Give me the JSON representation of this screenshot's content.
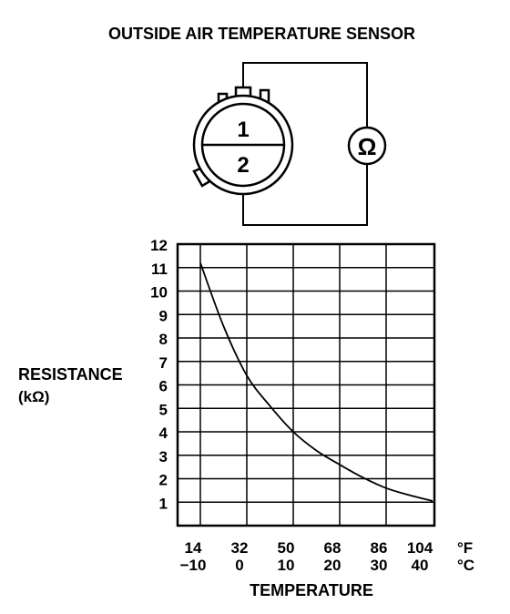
{
  "title": "OUTSIDE AIR TEMPERATURE SENSOR",
  "connector": {
    "terminal_1": "1",
    "terminal_2": "2"
  },
  "meter": {
    "symbol": "Ω"
  },
  "colors": {
    "ink": "#000000",
    "background": "#ffffff"
  },
  "chart_data": {
    "type": "line",
    "ylabel": "RESISTANCE",
    "yunit": "(kΩ)",
    "xlabel": "TEMPERATURE",
    "ylim": [
      0,
      12
    ],
    "xlim_c": [
      -10,
      40
    ],
    "y_ticks": [
      "1",
      "2",
      "3",
      "4",
      "5",
      "6",
      "7",
      "8",
      "9",
      "10",
      "11",
      "12"
    ],
    "x_ticks_f": [
      "14",
      "32",
      "50",
      "68",
      "86",
      "104"
    ],
    "x_ticks_c": [
      "−10",
      "0",
      "10",
      "20",
      "30",
      "40"
    ],
    "unit_f": "°F",
    "unit_c": "°C",
    "grid": true,
    "series": [
      {
        "x": [
          -10,
          -5,
          0,
          5,
          10,
          15,
          20,
          25,
          30,
          35,
          40
        ],
        "y": [
          11.2,
          8.5,
          6.4,
          5.1,
          4.0,
          3.2,
          2.6,
          2.05,
          1.6,
          1.3,
          1.05
        ]
      }
    ]
  }
}
